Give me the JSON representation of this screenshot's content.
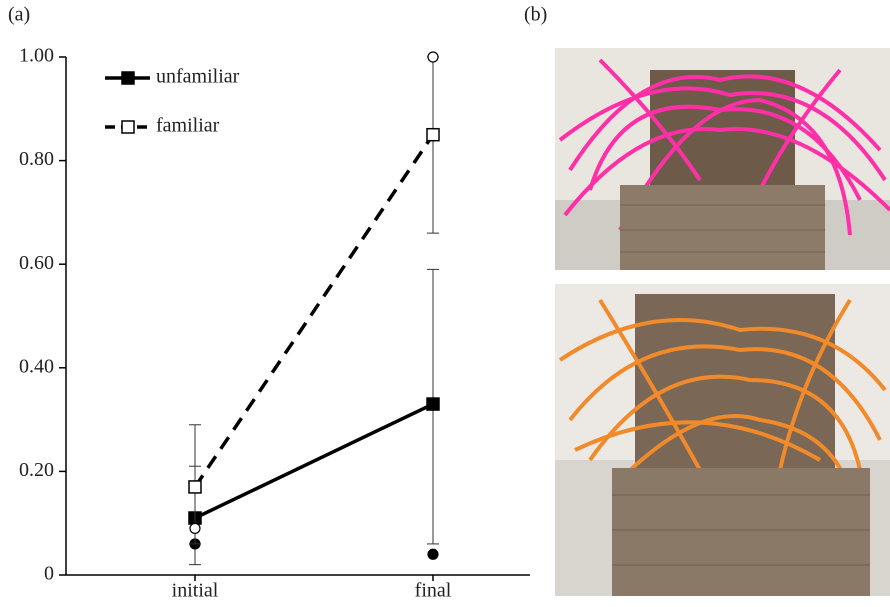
{
  "chart_data": {
    "type": "line",
    "panel_labels": [
      "(a)",
      "(b)"
    ],
    "categories": [
      "initial",
      "final"
    ],
    "series": [
      {
        "name": "unfamiliar",
        "color": "#000000",
        "dash": false,
        "marker_fill": "#000000",
        "values": [
          0.11,
          0.33
        ],
        "error_low": [
          0.02,
          0.06
        ],
        "error_high": [
          0.21,
          0.59
        ],
        "outliers": [
          0.06,
          0.04
        ]
      },
      {
        "name": "familiar",
        "color": "#000000",
        "dash": true,
        "marker_fill": "#ffffff",
        "values": [
          0.17,
          0.85
        ],
        "error_low": [
          0.06,
          0.66
        ],
        "error_high": [
          0.29,
          1.0
        ],
        "outliers": [
          0.09,
          1.0
        ]
      }
    ],
    "ylim": [
      0,
      1
    ],
    "yticks": [
      0,
      {
        "value": 0.2,
        "label": "0.20"
      },
      {
        "value": 0.4,
        "label": "0.40"
      },
      {
        "value": 0.6,
        "label": "0.60"
      },
      {
        "value": 0.8,
        "label": "0.80"
      },
      {
        "value": 1,
        "label": "1.00"
      }
    ],
    "legend": "upper left"
  }
}
